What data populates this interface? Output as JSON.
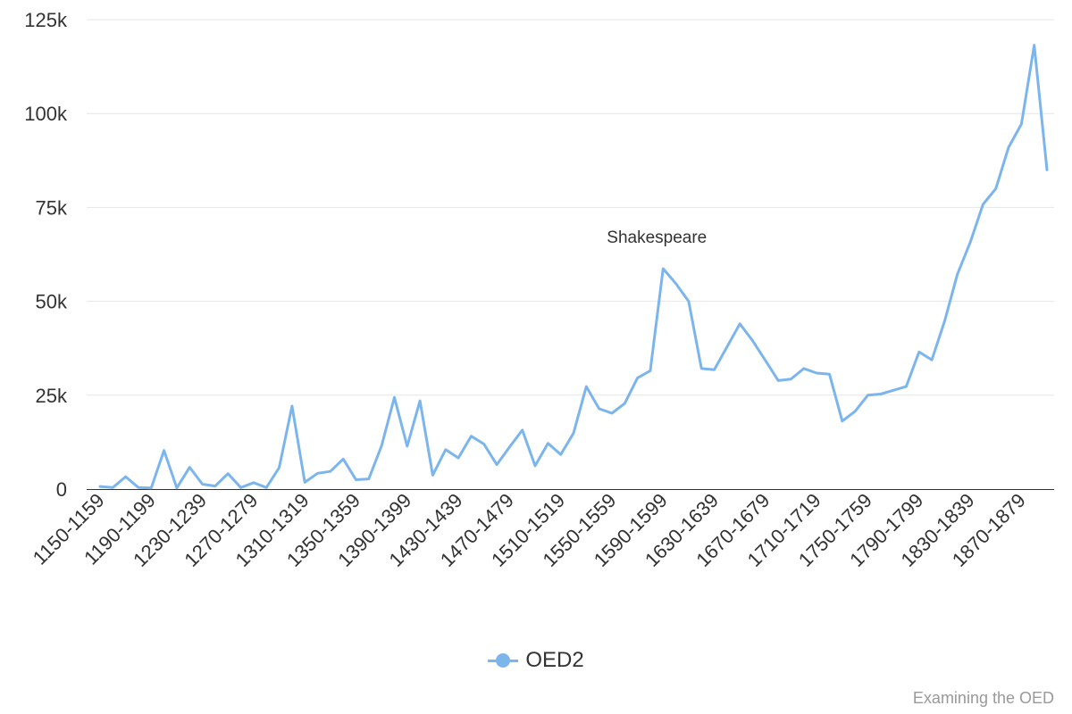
{
  "chart_data": {
    "type": "line",
    "x": [
      "1150-1159",
      "1160-1169",
      "1170-1179",
      "1180-1189",
      "1190-1199",
      "1200-1209",
      "1210-1219",
      "1220-1229",
      "1230-1239",
      "1240-1249",
      "1250-1259",
      "1260-1269",
      "1270-1279",
      "1280-1289",
      "1290-1299",
      "1300-1309",
      "1310-1319",
      "1320-1329",
      "1330-1339",
      "1340-1349",
      "1350-1359",
      "1360-1369",
      "1370-1379",
      "1380-1389",
      "1390-1399",
      "1400-1409",
      "1410-1419",
      "1420-1429",
      "1430-1439",
      "1440-1449",
      "1450-1459",
      "1460-1469",
      "1470-1479",
      "1480-1489",
      "1490-1499",
      "1500-1509",
      "1510-1519",
      "1520-1529",
      "1530-1539",
      "1540-1549",
      "1550-1559",
      "1560-1569",
      "1570-1579",
      "1580-1589",
      "1590-1599",
      "1600-1609",
      "1610-1619",
      "1620-1629",
      "1630-1639",
      "1640-1649",
      "1650-1659",
      "1660-1669",
      "1670-1679",
      "1680-1689",
      "1690-1699",
      "1700-1709",
      "1710-1719",
      "1720-1729",
      "1730-1739",
      "1740-1749",
      "1750-1759",
      "1760-1769",
      "1770-1779",
      "1780-1789",
      "1790-1799",
      "1800-1809",
      "1810-1819",
      "1820-1829",
      "1830-1839",
      "1840-1849",
      "1850-1859",
      "1860-1869",
      "1870-1879",
      "1880-1889",
      "1890-1899"
    ],
    "x_tick_labels": [
      "1150-1159",
      "1190-1199",
      "1230-1239",
      "1270-1279",
      "1310-1319",
      "1350-1359",
      "1390-1399",
      "1430-1439",
      "1470-1479",
      "1510-1519",
      "1550-1559",
      "1590-1599",
      "1630-1639",
      "1670-1679",
      "1710-1719",
      "1750-1759",
      "1790-1799",
      "1830-1839",
      "1870-1879"
    ],
    "series": [
      {
        "name": "OED2",
        "color": "#7cb5ec",
        "values": [
          700,
          400,
          3300,
          400,
          300,
          10300,
          300,
          5800,
          1300,
          800,
          4100,
          400,
          1700,
          400,
          5700,
          22100,
          1800,
          4200,
          4700,
          8000,
          2500,
          2700,
          11500,
          24400,
          11400,
          23500,
          3700,
          10500,
          8300,
          14100,
          12000,
          6500,
          11200,
          15700,
          6200,
          12200,
          9200,
          14900,
          27300,
          21400,
          20200,
          22800,
          29600,
          31500,
          58700,
          54700,
          50000,
          32100,
          31800,
          37900,
          44000,
          39500,
          34200,
          28900,
          29300,
          32100,
          30900,
          30600,
          18100,
          20700,
          25000,
          25300,
          26300,
          27300,
          36500,
          34400,
          44700,
          57200,
          65700,
          75800,
          80000,
          91000,
          97200,
          118200,
          85000
        ]
      }
    ],
    "yticks": [
      "0",
      "25k",
      "50k",
      "75k",
      "100k",
      "125k"
    ],
    "ylim": [
      0,
      125000
    ],
    "grid": true,
    "legend": "bottom-center",
    "annotations": [
      {
        "text": "Shakespeare",
        "x": "1590-1599"
      }
    ],
    "credit": "Examining the OED"
  }
}
